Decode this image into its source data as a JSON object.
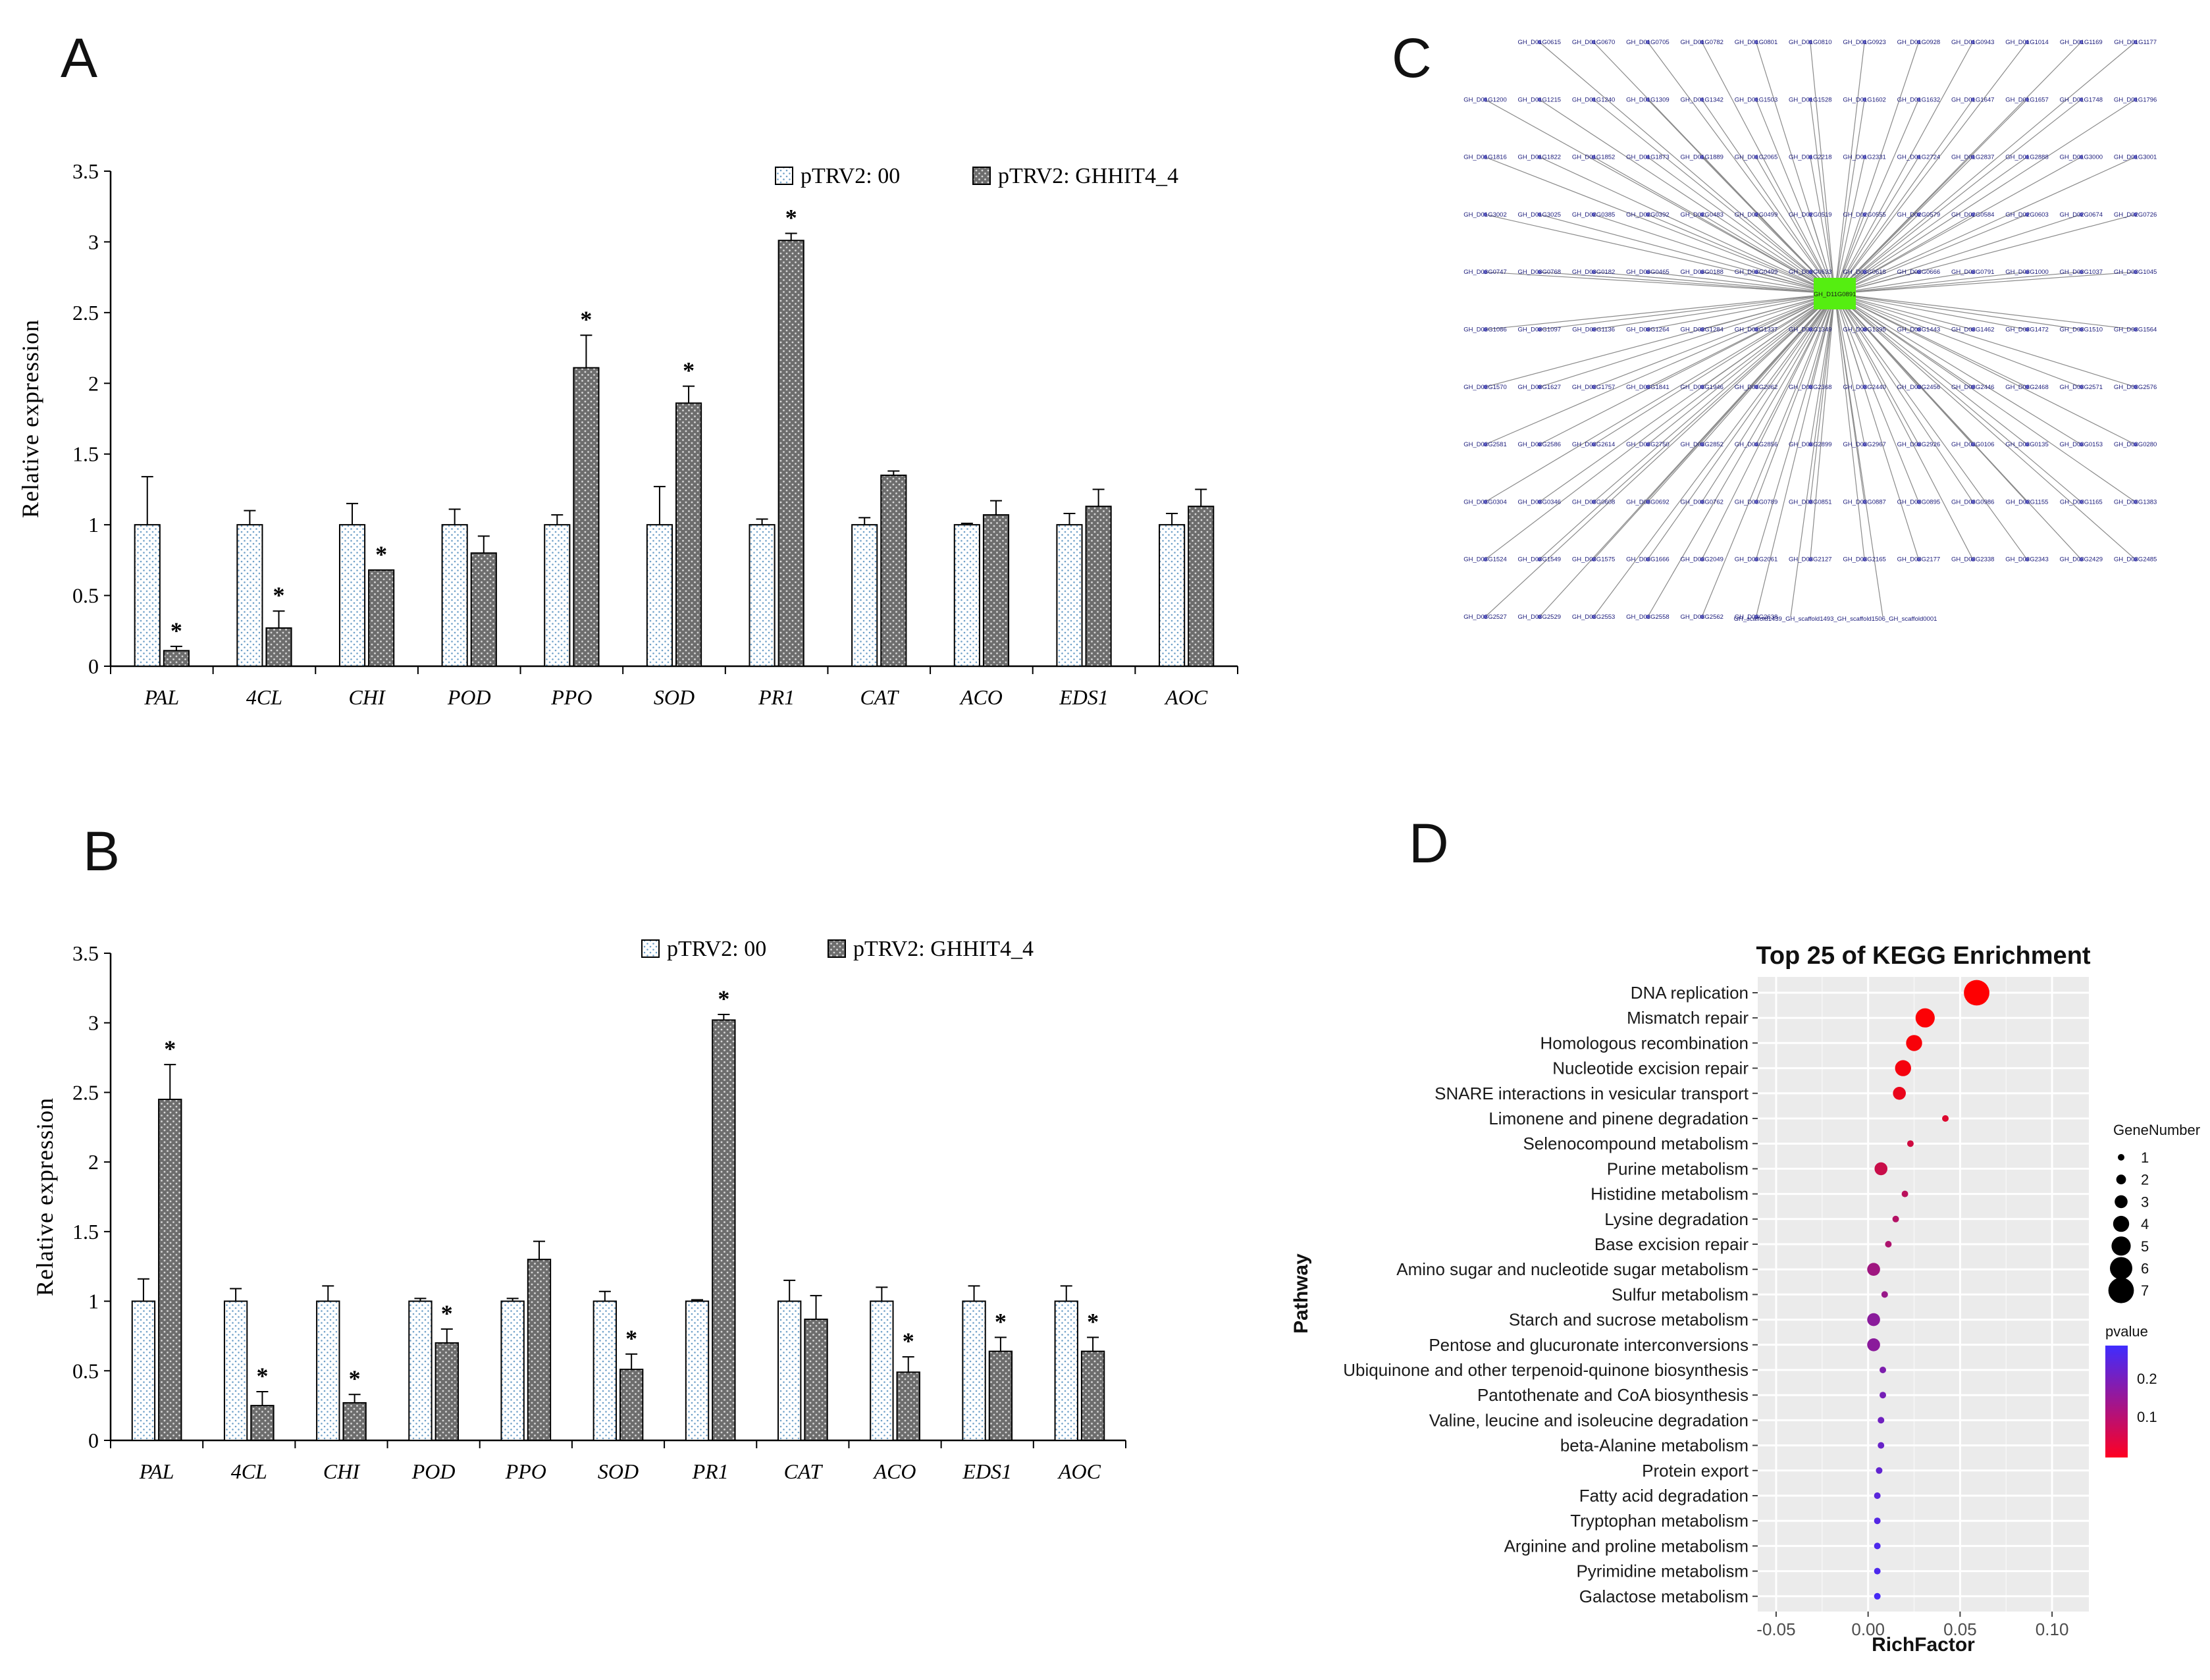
{
  "panels": {
    "a": "A",
    "b": "B",
    "c": "C",
    "d": "D"
  },
  "chart_data": [
    {
      "id": "A",
      "type": "bar",
      "ylabel": "Relative expression",
      "ylim": [
        0,
        3.5
      ],
      "yticks": [
        "0",
        "0.5",
        "1",
        "1.5",
        "2",
        "2.5",
        "3",
        "3.5"
      ],
      "categories": [
        "PAL",
        "4CL",
        "CHI",
        "POD",
        "PPO",
        "SOD",
        "PR1",
        "CAT",
        "ACO",
        "EDS1",
        "AOC"
      ],
      "legend": [
        "pTRV2: 00",
        "pTRV2: GHHIT4_4"
      ],
      "series": [
        {
          "name": "pTRV2: 00",
          "values": [
            1,
            1,
            1,
            1,
            1,
            1,
            1,
            1,
            1,
            1,
            1
          ],
          "errors": [
            0.34,
            0.1,
            0.15,
            0.11,
            0.07,
            0.27,
            0.04,
            0.05,
            0.01,
            0.08,
            0.08
          ]
        },
        {
          "name": "pTRV2: GHHIT4_4",
          "values": [
            0.11,
            0.27,
            0.68,
            0.8,
            2.11,
            1.86,
            3.01,
            1.35,
            1.07,
            1.13,
            1.13
          ],
          "errors": [
            0.03,
            0.12,
            0,
            0.12,
            0.23,
            0.12,
            0.05,
            0.03,
            0.1,
            0.12,
            0.12
          ]
        }
      ],
      "significance": [
        true,
        true,
        true,
        false,
        true,
        true,
        true,
        false,
        false,
        false,
        false
      ],
      "star": "*"
    },
    {
      "id": "B",
      "type": "bar",
      "ylabel": "Relative expression",
      "ylim": [
        0,
        3.5
      ],
      "yticks": [
        "0",
        "0.5",
        "1",
        "1.5",
        "2",
        "2.5",
        "3",
        "3.5"
      ],
      "categories": [
        "PAL",
        "4CL",
        "CHI",
        "POD",
        "PPO",
        "SOD",
        "PR1",
        "CAT",
        "ACO",
        "EDS1",
        "AOC"
      ],
      "legend": [
        "pTRV2: 00",
        "pTRV2: GHHIT4_4"
      ],
      "series": [
        {
          "name": "pTRV2: 00",
          "values": [
            1,
            1,
            1,
            1,
            1,
            1,
            1,
            1,
            1,
            1,
            1
          ],
          "errors": [
            0.16,
            0.09,
            0.11,
            0.02,
            0.02,
            0.07,
            0.01,
            0.15,
            0.1,
            0.11,
            0.11
          ]
        },
        {
          "name": "pTRV2: GHHIT4_4",
          "values": [
            2.45,
            0.25,
            0.27,
            0.7,
            1.3,
            0.51,
            3.02,
            0.87,
            0.49,
            0.64,
            0.64
          ],
          "errors": [
            0.25,
            0.1,
            0.06,
            0.1,
            0.13,
            0.11,
            0.04,
            0.17,
            0.11,
            0.1,
            0.1
          ]
        }
      ],
      "significance": [
        true,
        true,
        true,
        true,
        false,
        true,
        true,
        false,
        true,
        true,
        true
      ],
      "star": "*"
    },
    {
      "id": "D",
      "type": "scatter",
      "title": "Top 25 of KEGG Enrichment",
      "xlabel": "RichFactor",
      "ylabel": "Pathway",
      "xlim": [
        -0.06,
        0.12
      ],
      "xticks": [
        "-0.05",
        "0.00",
        "0.05",
        "0.10"
      ],
      "pathways": [
        "DNA replication",
        "Mismatch repair",
        "Homologous recombination",
        "Nucleotide excision repair",
        "SNARE interactions in vesicular transport",
        "Limonene and pinene degradation",
        "Selenocompound metabolism",
        "Purine metabolism",
        "Histidine metabolism",
        "Lysine degradation",
        "Base excision repair",
        "Amino sugar and nucleotide sugar metabolism",
        "Sulfur metabolism",
        "Starch and sucrose metabolism",
        "Pentose and glucuronate interconversions",
        "Ubiquinone and other terpenoid-quinone biosynthesis",
        "Pantothenate and CoA biosynthesis",
        "Valine, leucine and isoleucine degradation",
        "beta-Alanine metabolism",
        "Protein export",
        "Fatty acid degradation",
        "Tryptophan metabolism",
        "Arginine and proline metabolism",
        "Pyrimidine metabolism",
        "Galactose metabolism"
      ],
      "rich_factor": [
        0.059,
        0.031,
        0.025,
        0.019,
        0.017,
        0.042,
        0.023,
        0.007,
        0.02,
        0.015,
        0.011,
        0.003,
        0.009,
        0.003,
        0.003,
        0.008,
        0.008,
        0.007,
        0.007,
        0.006,
        0.005,
        0.005,
        0.005,
        0.005,
        0.005
      ],
      "gene_number": [
        7,
        5,
        4,
        4,
        3,
        1,
        1,
        3,
        1,
        1,
        1,
        3,
        1,
        3,
        3,
        1,
        1,
        1,
        1,
        1,
        1,
        1,
        1,
        1,
        1
      ],
      "pvalue": [
        0.002,
        0.005,
        0.01,
        0.015,
        0.03,
        0.05,
        0.07,
        0.08,
        0.1,
        0.11,
        0.12,
        0.14,
        0.15,
        0.17,
        0.17,
        0.19,
        0.2,
        0.21,
        0.22,
        0.23,
        0.24,
        0.25,
        0.26,
        0.26,
        0.27
      ],
      "size_legend_title": "GeneNumber",
      "size_legend": [
        "1",
        "2",
        "3",
        "4",
        "5",
        "6",
        "7"
      ],
      "color_legend_title": "pvalue",
      "color_legend_ticks": [
        "0.2",
        "0.1"
      ],
      "colors": {
        "low": "#ff0000",
        "high": "#3f2cff"
      }
    }
  ],
  "network": {
    "center_label": "GH_D11G0891",
    "bottom_extra": "GH_scaffold1439_GH_scaffold1493_GH_scaffold1506_GH_scaffold0001",
    "rows": [
      [
        "GH_D01G0615",
        "GH_D01G0670",
        "GH_D01G0705",
        "GH_D01G0782",
        "GH_D01G0801",
        "GH_D01G0810",
        "GH_D01G0923",
        "GH_D01G0928",
        "GH_D01G0943",
        "GH_D01G1014",
        "GH_D01G1169",
        "GH_D01G1177"
      ],
      [
        "GH_D01G1200",
        "GH_D01G1215",
        "GH_D01G1240",
        "GH_D01G1309",
        "GH_D01G1342",
        "GH_D01G1503",
        "GH_D01G1528",
        "GH_D01G1602",
        "GH_D01G1632",
        "GH_D01G1647",
        "GH_D01G1657",
        "GH_D01G1748",
        "GH_D01G1796"
      ],
      [
        "GH_D01G1816",
        "GH_D01G1822",
        "GH_D01G1852",
        "GH_D01G1873",
        "GH_D01G1889",
        "GH_D01G2065",
        "GH_D01G2218",
        "GH_D01G2331",
        "GH_D01G2724",
        "GH_D01G2837",
        "GH_D01G2888",
        "GH_D01G3000",
        "GH_D01G3001"
      ],
      [
        "GH_D01G3002",
        "GH_D01G3025",
        "GH_D02G0385",
        "GH_D02G0392",
        "GH_D02G0483",
        "GH_D02G0499",
        "GH_D02G0519",
        "GH_D02G0555",
        "GH_D02G0579",
        "GH_D02G0584",
        "GH_D02G0603",
        "GH_D02G0674",
        "GH_D02G0726"
      ],
      [
        "GH_D03G0747",
        "GH_D03G0768",
        "GH_D03G0182",
        "GH_D03G0465",
        "GH_D03G0188",
        "GH_D03G0499",
        "GH_D03G0633",
        "GH_D03G0618",
        "GH_D03G0666",
        "GH_D03G0791",
        "GH_D03G1000",
        "GH_D03G1037",
        "GH_D03G1045"
      ],
      [
        "GH_D03G1086",
        "GH_D03G1097",
        "GH_D03G1136",
        "GH_D03G1264",
        "GH_D03G1284",
        "GH_D03G1337",
        "GH_D03G1349",
        "GH_D03G1395",
        "GH_D03G1443",
        "GH_D03G1462",
        "GH_D03G1472",
        "GH_D03G1510",
        "GH_D03G1564"
      ],
      [
        "GH_D03G1570",
        "GH_D03G1627",
        "GH_D03G1757",
        "GH_D03G1841",
        "GH_D03G1946",
        "GH_D03G2062",
        "GH_D03G2368",
        "GH_D03G2440",
        "GH_D03G2456",
        "GH_D03G2446",
        "GH_D03G2468",
        "GH_D03G2571",
        "GH_D03G2576"
      ],
      [
        "GH_D03G2581",
        "GH_D03G2586",
        "GH_D03G2614",
        "GH_D03G2750",
        "GH_D03G2852",
        "GH_D03G2856",
        "GH_D03G2899",
        "GH_D03G2967",
        "GH_D03G2926",
        "GH_D03G0106",
        "GH_D03G0135",
        "GH_D03G0153",
        "GH_D03G0280"
      ],
      [
        "GH_D03G0304",
        "GH_D03G0346",
        "GH_D03G0608",
        "GH_D03G0692",
        "GH_D03G0762",
        "GH_D03G0789",
        "GH_D03G0851",
        "GH_D03G0887",
        "GH_D03G0895",
        "GH_D03G0986",
        "GH_D03G1155",
        "GH_D03G1165",
        "GH_D03G1383"
      ],
      [
        "GH_D03G1524",
        "GH_D03G1549",
        "GH_D03G1575",
        "GH_D03G1666",
        "GH_D03G2049",
        "GH_D03G2061",
        "GH_D03G2127",
        "GH_D03G2165",
        "GH_D03G2177",
        "GH_D03G2338",
        "GH_D03G2343",
        "GH_D03G2429",
        "GH_D03G2485"
      ],
      [
        "GH_D03G2527",
        "GH_D03G2529",
        "GH_D03G2553",
        "GH_D03G2558",
        "GH_D03G2562",
        "GH_D03G2638"
      ]
    ]
  }
}
